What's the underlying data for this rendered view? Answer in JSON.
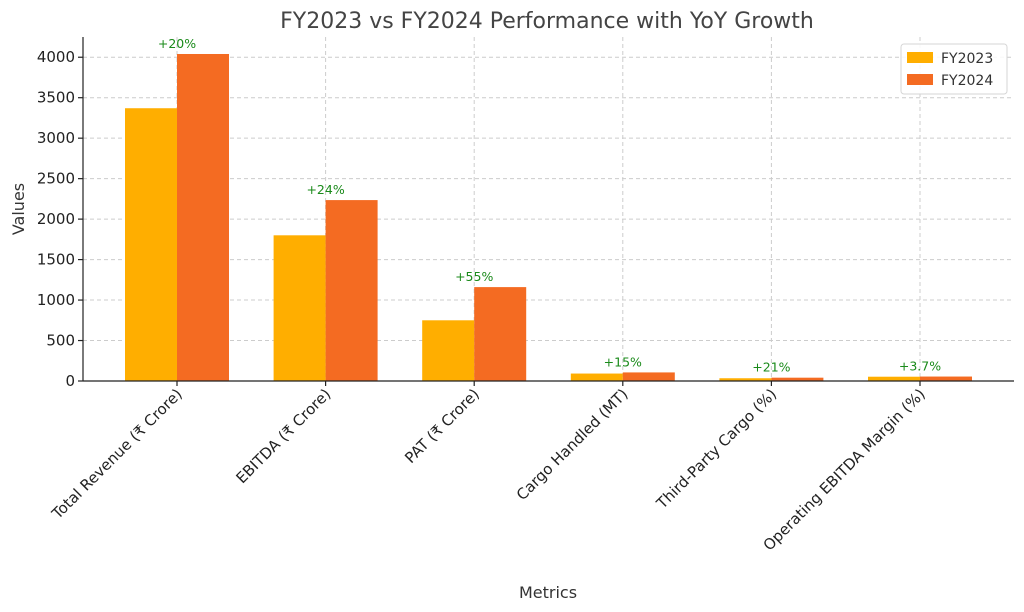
{
  "chart_data": {
    "type": "bar",
    "title": "FY2023 vs FY2024 Performance with YoY Growth",
    "xlabel": "Metrics",
    "ylabel": "Values",
    "ylim": [
      0,
      4250
    ],
    "yticks": [
      0,
      500,
      1000,
      1500,
      2000,
      2500,
      3000,
      3500,
      4000
    ],
    "grid": true,
    "legend_position": "top-right",
    "categories": [
      "Total Revenue (₹ Crore)",
      "EBITDA (₹ Crore)",
      "PAT (₹ Crore)",
      "Cargo Handled (MT)",
      "Third-Party Cargo (%)",
      "Operating EBITDA Margin (%)"
    ],
    "series": [
      {
        "name": "FY2023",
        "color": "#FFAE00",
        "values": [
          3370,
          1800,
          750,
          92,
          34,
          53
        ]
      },
      {
        "name": "FY2024",
        "color": "#F46B22",
        "values": [
          4040,
          2235,
          1160,
          106,
          41,
          55
        ]
      }
    ],
    "annotations": [
      "+20%",
      "+24%",
      "+55%",
      "+15%",
      "+21%",
      "+3.7%"
    ]
  }
}
